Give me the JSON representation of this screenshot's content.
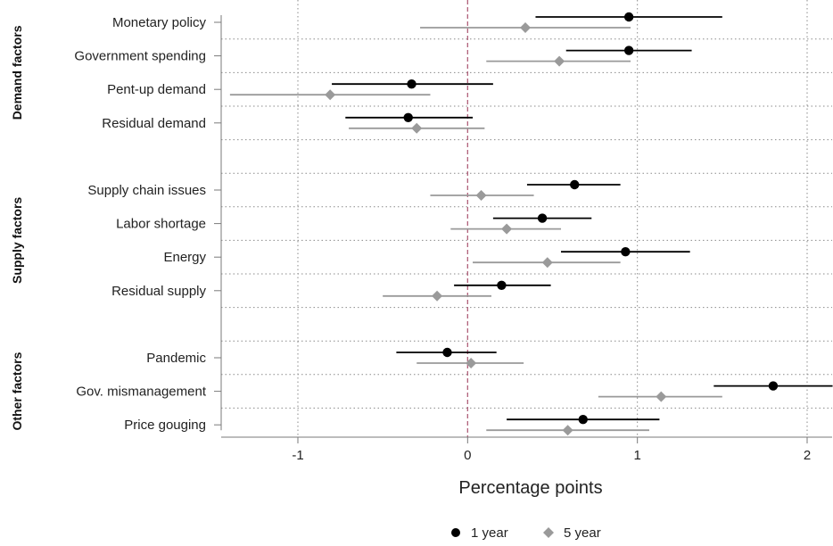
{
  "chart_data": {
    "type": "scatter",
    "title": "",
    "xlabel": "Percentage points",
    "ylabel": "",
    "xlim": [
      -1.4,
      2.15
    ],
    "xticks": [
      -1,
      0,
      1,
      2
    ],
    "xtick_labels": [
      "-1",
      "0",
      "1",
      "2"
    ],
    "reference_line_x": 0,
    "grid": true,
    "legend_position": "bottom",
    "groups": [
      {
        "label": "Demand factors",
        "categories": [
          "Monetary policy",
          "Government spending",
          "Pent-up demand",
          "Residual demand"
        ]
      },
      {
        "label": "Supply factors",
        "categories": [
          "Supply chain issues",
          "Labor shortage",
          "Energy",
          "Residual supply"
        ]
      },
      {
        "label": "Other factors",
        "categories": [
          "Pandemic",
          "Gov. mismanagement",
          "Price gouging"
        ]
      }
    ],
    "series": [
      {
        "name": "1 year",
        "color": "#000000",
        "marker": "circle",
        "values": [
          0.95,
          0.95,
          -0.33,
          -0.35,
          0.63,
          0.44,
          0.93,
          0.2,
          -0.12,
          1.8,
          0.68
        ],
        "ci_low": [
          0.4,
          0.58,
          -0.8,
          -0.72,
          0.35,
          0.15,
          0.55,
          -0.08,
          -0.42,
          1.45,
          0.23
        ],
        "ci_high": [
          1.5,
          1.32,
          0.15,
          0.03,
          0.9,
          0.73,
          1.31,
          0.49,
          0.17,
          2.15,
          1.13
        ]
      },
      {
        "name": "5 year",
        "color": "#9a9a9a",
        "marker": "diamond",
        "values": [
          0.34,
          0.54,
          -0.81,
          -0.3,
          0.08,
          0.23,
          0.47,
          -0.18,
          0.02,
          1.14,
          0.59
        ],
        "ci_low": [
          -0.28,
          0.11,
          -1.4,
          -0.7,
          -0.22,
          -0.1,
          0.03,
          -0.5,
          -0.3,
          0.77,
          0.11
        ],
        "ci_high": [
          0.96,
          0.96,
          -0.22,
          0.1,
          0.39,
          0.55,
          0.9,
          0.14,
          0.33,
          1.5,
          1.07
        ]
      }
    ]
  }
}
